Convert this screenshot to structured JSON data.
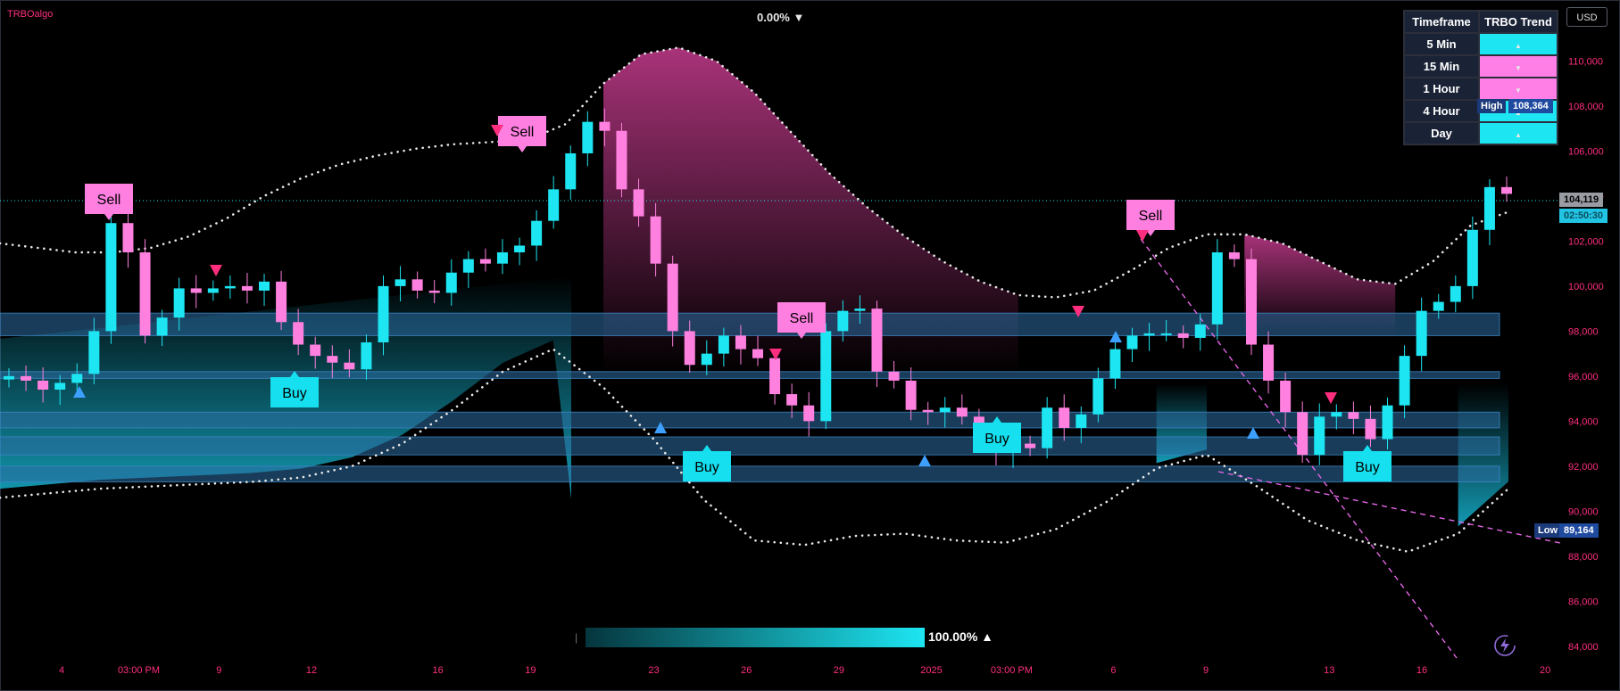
{
  "header": {
    "brand": "TRBOalgo",
    "top_percent": "0.00% ▼",
    "currency": "USD"
  },
  "trend_table": {
    "headers": [
      "Timeframe",
      "TRBO Trend"
    ],
    "rows": [
      {
        "timeframe": "5 Min",
        "trend": "up",
        "color": "#1de6f2",
        "arrow": "▲"
      },
      {
        "timeframe": "15 Min",
        "trend": "down",
        "color": "#ff7fe6",
        "arrow": "▼"
      },
      {
        "timeframe": "1 Hour",
        "trend": "down",
        "color": "#ff7fe6",
        "arrow": "▼"
      },
      {
        "timeframe": "4 Hour",
        "trend": "up",
        "color": "#1de6f2",
        "arrow": "▲"
      },
      {
        "timeframe": "Day",
        "trend": "up",
        "color": "#1de6f2",
        "arrow": "▲"
      }
    ]
  },
  "price_tags": {
    "high_label": "High",
    "high_value": "108,364",
    "low_label": "Low",
    "low_value": "89,164",
    "last_price": "104,119",
    "countdown": "02:50:30"
  },
  "strength_meter": {
    "value_text": "100.00% ▲",
    "level": 1.0
  },
  "chart_data": {
    "type": "candlestick",
    "ylim": [
      83000,
      112000
    ],
    "y_ticks": [
      84000,
      86000,
      88000,
      90000,
      92000,
      94000,
      96000,
      98000,
      100000,
      102000,
      104000,
      106000,
      108000,
      110000
    ],
    "y_tick_labels": [
      "84,000",
      "86,000",
      "88,000",
      "90,000",
      "92,000",
      "94,000",
      "96,000",
      "98,000",
      "100,000",
      "102,000",
      "104,000",
      "106,000",
      "108,000",
      "110,000"
    ],
    "x_tick_labels": [
      "4",
      "03:00 PM",
      "9",
      "12",
      "16",
      "19",
      "23",
      "26",
      "29",
      "2025",
      "03:00 PM",
      "6",
      "9",
      "13",
      "16",
      "20"
    ],
    "x_tick_positions": [
      0.5,
      3.0,
      5.6,
      8.6,
      12.7,
      15.7,
      19.7,
      22.7,
      25.7,
      28.7,
      31.3,
      34.6,
      37.6,
      41.6,
      44.6,
      48.6
    ],
    "x_range": [
      -1.5,
      49.0
    ],
    "close": [
      96000,
      95800,
      95400,
      95700,
      96100,
      98000,
      102800,
      101500,
      97800,
      98600,
      99900,
      99700,
      99900,
      100000,
      99800,
      100200,
      98400,
      97400,
      96900,
      96600,
      96300,
      97500,
      100000,
      100300,
      99800,
      99700,
      100600,
      101200,
      101000,
      101500,
      101800,
      102900,
      104300,
      105900,
      107300,
      106900,
      104300,
      103100,
      101000,
      98000,
      96500,
      97000,
      97800,
      97200,
      96800,
      95200,
      94700,
      94000,
      98000,
      98900,
      99000,
      96200,
      95800,
      94500,
      94400,
      94600,
      94200,
      93300,
      92600,
      93000,
      92800,
      94600,
      93700,
      94300,
      95900,
      97200,
      97800,
      97900,
      97900,
      97700,
      98300,
      101500,
      101200,
      97400,
      95800,
      94400,
      92500,
      94200,
      94400,
      94100,
      93200,
      94700,
      96900,
      98900,
      99300,
      100000,
      102500,
      104400,
      104100
    ],
    "ohlc_note": "",
    "bands": [
      {
        "low": 97800,
        "high": 98800
      },
      {
        "low": 95900,
        "high": 96200
      },
      {
        "low": 93700,
        "high": 94400
      },
      {
        "low": 92500,
        "high": 93300
      },
      {
        "low": 91300,
        "high": 92000
      }
    ],
    "upper_dotted": [
      101900,
      101700,
      101500,
      101500,
      101700,
      102200,
      103000,
      104000,
      104800,
      105400,
      105800,
      106100,
      106300,
      106400,
      106500,
      107200,
      109000,
      110300,
      110600,
      110000,
      108600,
      106800,
      105000,
      103500,
      102200,
      101100,
      100200,
      99600,
      99500,
      99800,
      100700,
      101700,
      102300,
      102300,
      101900,
      101100,
      100300,
      100100,
      101100,
      102700,
      103300
    ],
    "lower_dotted": [
      90600,
      90800,
      91000,
      91100,
      91200,
      91300,
      91500,
      92000,
      93000,
      94500,
      96200,
      97200,
      95500,
      93200,
      90500,
      88700,
      88500,
      88900,
      89000,
      88700,
      88600,
      89200,
      90400,
      91900,
      92500,
      91100,
      89600,
      88700,
      88200,
      89000,
      91000
    ],
    "buy_signals": [
      "Buy",
      "Buy",
      "Buy",
      "Buy"
    ],
    "sell_signals": [
      "Sell",
      "Sell",
      "Sell",
      "Sell"
    ]
  },
  "colors": {
    "up": "#1de6f2",
    "down": "#ff80df",
    "buy_label": "#16e0ef",
    "sell_label": "#ff7fe0",
    "axis_text": "#ff2e7e",
    "band": "#2b6ea3",
    "buy_arrow": "#3da0ff",
    "sell_arrow": "#ff2e7e"
  }
}
